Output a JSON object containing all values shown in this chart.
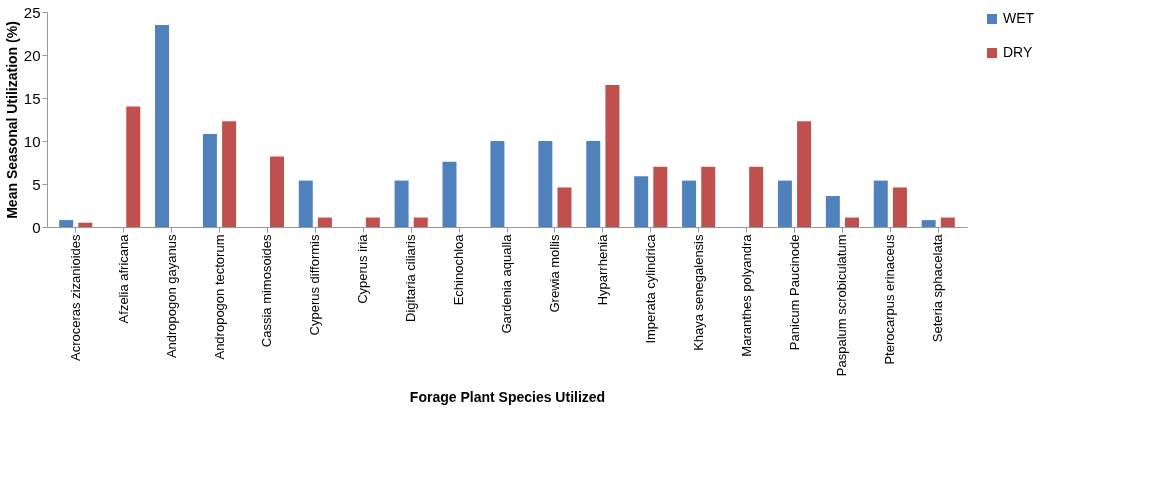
{
  "chart_data": {
    "type": "bar",
    "xlabel": "Forage Plant Species Utilized",
    "ylabel": "Mean Seasonal Utilization (%)",
    "categories": [
      "Acroceras zizanioides",
      "Afzelia africana",
      "Andropogon gayanus",
      "Andropogon tectorum",
      "Cassia mimosoides",
      "Cyperus difformis",
      "Cyperus iria",
      "Digitaria ciliaris",
      "Echinochloa",
      "Gardenia aqualla",
      "Grewia mollis",
      "Hyparrhenia",
      "Imperata cylindrica",
      "Khaya senegalensis",
      "Maranthes polyandra",
      "Panicum Paucinode",
      "Paspalum scrobiculatum",
      "Pterocarpus erinaceus",
      "Seteria sphacelata"
    ],
    "series": [
      {
        "name": "WET",
        "color": "#4f81bd",
        "values": [
          0.8,
          0,
          23.5,
          10.8,
          0,
          5.4,
          0,
          5.4,
          7.6,
          10,
          10,
          10,
          5.9,
          5.4,
          0,
          5.4,
          3.6,
          5.4,
          0.8
        ]
      },
      {
        "name": "DRY",
        "color": "#c0504d",
        "values": [
          0.5,
          14,
          0,
          12.3,
          8.2,
          1.1,
          1.1,
          1.1,
          0,
          0,
          4.6,
          16.5,
          7,
          7,
          7,
          12.3,
          1.1,
          4.6,
          1.1
        ]
      }
    ],
    "ylim": [
      0,
      25
    ],
    "yticks": [
      0,
      5,
      10,
      15,
      20,
      25
    ],
    "grid": false,
    "legend": "right"
  }
}
